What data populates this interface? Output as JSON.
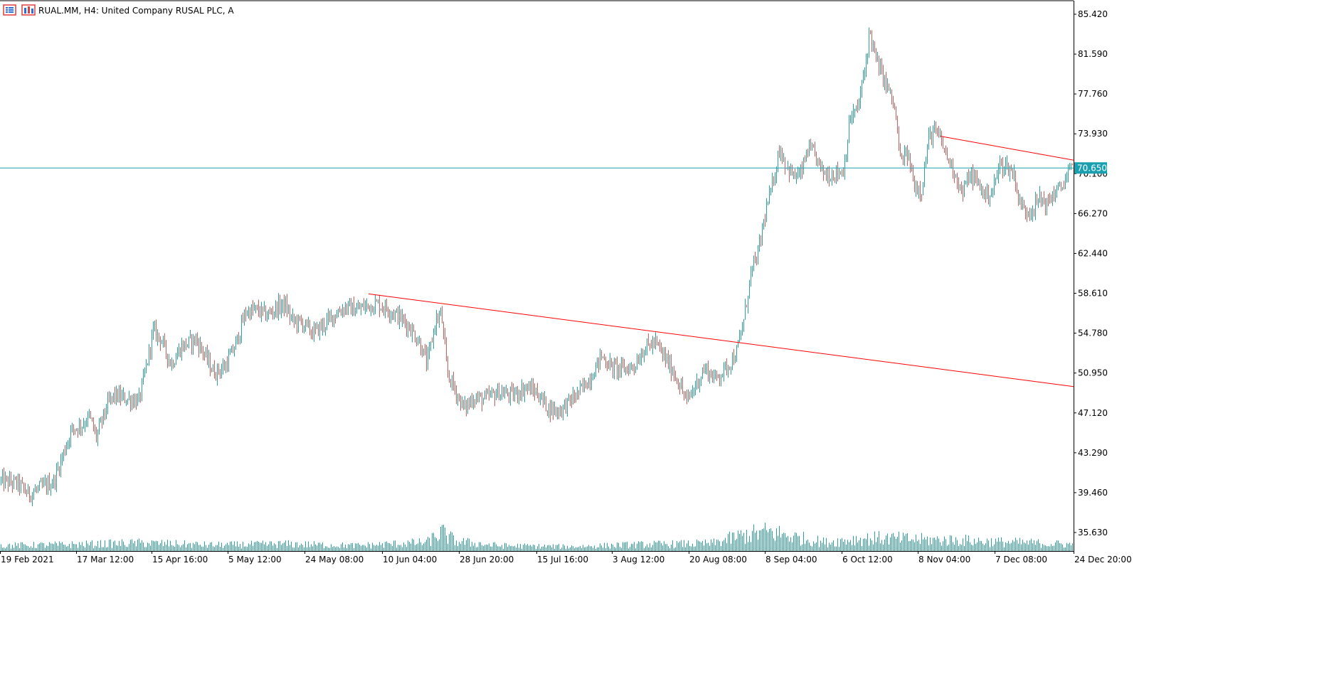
{
  "header": {
    "title": "RUAL.MM, H4:  United Company RUSAL PLC, A"
  },
  "icons": {
    "list": "list-icon",
    "chart": "chart-icon"
  },
  "colors": {
    "bull": "#26a69a",
    "bear": "#ef5350",
    "volume": "#26a69a",
    "price_line": "#1a9fb0",
    "trendline": "#ff0000",
    "axis_text": "#000000",
    "border": "#000000"
  },
  "chart_data": {
    "type": "candlestick",
    "title": "RUAL.MM, H4:  United Company RUSAL PLC, A",
    "symbol": "RUAL.MM",
    "timeframe": "H4",
    "current_price": "70.650",
    "y_ticks": [
      "85.420",
      "81.590",
      "77.760",
      "73.930",
      "70.100",
      "66.270",
      "62.440",
      "58.610",
      "54.780",
      "50.950",
      "47.120",
      "43.290",
      "39.460",
      "35.630"
    ],
    "x_ticks": [
      "19 Feb 2021",
      "17 Mar 12:00",
      "15 Apr 16:00",
      "5 May 12:00",
      "24 May 08:00",
      "10 Jun 04:00",
      "28 Jun 20:00",
      "15 Jul 16:00",
      "3 Aug 12:00",
      "20 Aug 08:00",
      "8 Sep 04:00",
      "6 Oct 12:00",
      "8 Nov 04:00",
      "7 Dec 08:00",
      "24 Dec 20:00"
    ],
    "ylim": [
      34.5,
      86.8
    ],
    "close_path": [
      [
        0,
        40.6
      ],
      [
        25,
        40.3
      ],
      [
        40,
        39.3
      ],
      [
        60,
        40.0
      ],
      [
        75,
        40.5
      ],
      [
        90,
        43.5
      ],
      [
        100,
        45.5
      ],
      [
        115,
        46.0
      ],
      [
        125,
        46.8
      ],
      [
        135,
        44.8
      ],
      [
        150,
        47.8
      ],
      [
        160,
        48.8
      ],
      [
        175,
        48.5
      ],
      [
        195,
        48.3
      ],
      [
        205,
        51.5
      ],
      [
        215,
        55.0
      ],
      [
        225,
        54.3
      ],
      [
        240,
        51.8
      ],
      [
        255,
        53.5
      ],
      [
        275,
        54.2
      ],
      [
        285,
        53.0
      ],
      [
        300,
        51.0
      ],
      [
        315,
        51.5
      ],
      [
        330,
        53.5
      ],
      [
        345,
        56.8
      ],
      [
        360,
        57.0
      ],
      [
        375,
        56.5
      ],
      [
        390,
        57.3
      ],
      [
        400,
        57.5
      ],
      [
        410,
        56.0
      ],
      [
        425,
        55.7
      ],
      [
        440,
        54.8
      ],
      [
        455,
        55.6
      ],
      [
        470,
        56.6
      ],
      [
        485,
        57.3
      ],
      [
        500,
        57.0
      ],
      [
        515,
        57.4
      ],
      [
        530,
        57.6
      ],
      [
        545,
        57.1
      ],
      [
        560,
        56.4
      ],
      [
        575,
        55.4
      ],
      [
        590,
        53.8
      ],
      [
        600,
        51.8
      ],
      [
        612,
        56.0
      ],
      [
        620,
        56.6
      ],
      [
        628,
        51.0
      ],
      [
        640,
        49.2
      ],
      [
        652,
        47.5
      ],
      [
        665,
        48.6
      ],
      [
        680,
        48.4
      ],
      [
        700,
        49.1
      ],
      [
        720,
        48.8
      ],
      [
        740,
        49.6
      ],
      [
        755,
        49.0
      ],
      [
        770,
        47.6
      ],
      [
        785,
        47.3
      ],
      [
        800,
        48.2
      ],
      [
        815,
        49.2
      ],
      [
        830,
        50.6
      ],
      [
        845,
        52.6
      ],
      [
        860,
        51.5
      ],
      [
        875,
        51.3
      ],
      [
        890,
        51.6
      ],
      [
        905,
        53.3
      ],
      [
        920,
        53.9
      ],
      [
        935,
        52.3
      ],
      [
        950,
        50.6
      ],
      [
        965,
        48.2
      ],
      [
        975,
        49.5
      ],
      [
        990,
        51.4
      ],
      [
        1005,
        50.4
      ],
      [
        1020,
        51.4
      ],
      [
        1035,
        52.9
      ],
      [
        1045,
        56.0
      ],
      [
        1055,
        60.5
      ],
      [
        1065,
        62.4
      ],
      [
        1075,
        66.2
      ],
      [
        1085,
        68.9
      ],
      [
        1095,
        72.5
      ],
      [
        1105,
        70.9
      ],
      [
        1115,
        69.8
      ],
      [
        1125,
        70.0
      ],
      [
        1135,
        72.4
      ],
      [
        1145,
        71.9
      ],
      [
        1155,
        70.3
      ],
      [
        1165,
        70.0
      ],
      [
        1175,
        70.2
      ],
      [
        1185,
        70.4
      ],
      [
        1195,
        75.5
      ],
      [
        1205,
        76.3
      ],
      [
        1215,
        80.0
      ],
      [
        1222,
        83.9
      ],
      [
        1230,
        81.2
      ],
      [
        1240,
        79.5
      ],
      [
        1250,
        77.9
      ],
      [
        1258,
        76.0
      ],
      [
        1265,
        71.3
      ],
      [
        1275,
        72.0
      ],
      [
        1285,
        69.0
      ],
      [
        1295,
        68.6
      ],
      [
        1305,
        73.5
      ],
      [
        1313,
        74.2
      ],
      [
        1322,
        73.3
      ],
      [
        1332,
        71.5
      ],
      [
        1342,
        70.2
      ],
      [
        1352,
        68.1
      ],
      [
        1362,
        70.0
      ],
      [
        1372,
        69.4
      ],
      [
        1385,
        68.0
      ],
      [
        1395,
        68.5
      ],
      [
        1405,
        71.0
      ],
      [
        1415,
        70.8
      ],
      [
        1425,
        70.0
      ],
      [
        1432,
        67.5
      ],
      [
        1440,
        66.5
      ],
      [
        1452,
        66.8
      ],
      [
        1462,
        67.8
      ],
      [
        1472,
        67.1
      ],
      [
        1480,
        68.2
      ],
      [
        1490,
        68.6
      ],
      [
        1500,
        70.0
      ],
      [
        1509,
        70.65
      ]
    ],
    "volume_profile": [
      [
        0,
        1.0
      ],
      [
        100,
        1.2
      ],
      [
        200,
        1.5
      ],
      [
        300,
        1.1
      ],
      [
        400,
        1.3
      ],
      [
        500,
        1.0
      ],
      [
        600,
        1.6
      ],
      [
        620,
        3.5
      ],
      [
        640,
        1.8
      ],
      [
        700,
        1.0
      ],
      [
        800,
        0.8
      ],
      [
        900,
        1.2
      ],
      [
        1000,
        1.4
      ],
      [
        1040,
        2.8
      ],
      [
        1080,
        3.6
      ],
      [
        1120,
        2.5
      ],
      [
        1160,
        1.6
      ],
      [
        1200,
        2.2
      ],
      [
        1240,
        2.4
      ],
      [
        1300,
        2.1
      ],
      [
        1350,
        2.0
      ],
      [
        1400,
        1.7
      ],
      [
        1450,
        1.5
      ],
      [
        1509,
        1.2
      ]
    ],
    "trendlines": [
      {
        "x1": 518,
        "y1": 58.55,
        "x2": 1509,
        "y2": 49.65
      },
      {
        "x1": 1322,
        "y1": 73.7,
        "x2": 1509,
        "y2": 71.4
      }
    ]
  }
}
